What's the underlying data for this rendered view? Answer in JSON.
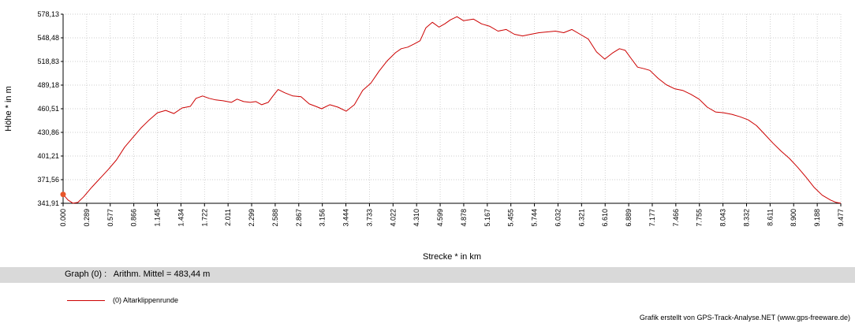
{
  "chart_data": {
    "type": "line",
    "xlabel": "Strecke *  in  km",
    "ylabel": "Höhe *  in  m",
    "xlim": [
      0,
      9.477
    ],
    "ylim": [
      341.91,
      578.13
    ],
    "x_ticks": [
      "0.000",
      "0.289",
      "0.577",
      "0.866",
      "1.145",
      "1.434",
      "1.722",
      "2.011",
      "2.299",
      "2.588",
      "2.867",
      "3.156",
      "3.444",
      "3.733",
      "4.022",
      "4.310",
      "4.599",
      "4.878",
      "5.167",
      "5.455",
      "5.744",
      "6.032",
      "6.321",
      "6.610",
      "6.889",
      "7.177",
      "7.466",
      "7.755",
      "8.043",
      "8.332",
      "8.611",
      "8.900",
      "9.188",
      "9.477"
    ],
    "y_ticks": [
      "578,13",
      "548,48",
      "518,83",
      "489,18",
      "460,51",
      "430,86",
      "401,21",
      "371,56",
      "341,91"
    ],
    "grid": true,
    "series": [
      {
        "name": "(0) Altarklippenrunde",
        "color": "#cc0000",
        "x": [
          0.0,
          0.06,
          0.12,
          0.18,
          0.25,
          0.35,
          0.45,
          0.55,
          0.65,
          0.75,
          0.85,
          0.95,
          1.05,
          1.15,
          1.25,
          1.35,
          1.45,
          1.55,
          1.62,
          1.7,
          1.78,
          1.86,
          1.95,
          2.05,
          2.12,
          2.2,
          2.28,
          2.35,
          2.42,
          2.5,
          2.55,
          2.62,
          2.7,
          2.8,
          2.9,
          3.0,
          3.08,
          3.15,
          3.25,
          3.35,
          3.45,
          3.55,
          3.65,
          3.75,
          3.85,
          3.95,
          4.05,
          4.12,
          4.2,
          4.28,
          4.35,
          4.42,
          4.5,
          4.58,
          4.65,
          4.72,
          4.8,
          4.88,
          5.0,
          5.1,
          5.2,
          5.3,
          5.4,
          5.5,
          5.6,
          5.7,
          5.8,
          5.9,
          6.0,
          6.1,
          6.2,
          6.3,
          6.4,
          6.5,
          6.6,
          6.7,
          6.78,
          6.85,
          6.92,
          7.0,
          7.08,
          7.15,
          7.25,
          7.35,
          7.45,
          7.55,
          7.65,
          7.75,
          7.85,
          7.95,
          8.05,
          8.15,
          8.25,
          8.35,
          8.45,
          8.55,
          8.65,
          8.75,
          8.85,
          8.95,
          9.05,
          9.15,
          9.25,
          9.35,
          9.42,
          9.477
        ],
        "y": [
          353,
          346,
          342,
          343,
          350,
          362,
          373,
          384,
          396,
          412,
          424,
          436,
          446,
          455,
          458,
          454,
          461,
          463,
          473,
          476,
          473,
          471,
          470,
          468,
          472,
          469,
          468,
          469,
          465,
          468,
          475,
          484,
          480,
          476,
          475,
          466,
          463,
          460,
          465,
          462,
          457,
          465,
          483,
          492,
          507,
          520,
          530,
          535,
          537,
          541,
          545,
          561,
          568,
          562,
          566,
          571,
          575,
          570,
          572,
          566,
          563,
          557,
          559,
          553,
          551,
          553,
          555,
          556,
          557,
          555,
          559,
          553,
          547,
          531,
          522,
          530,
          535,
          533,
          523,
          512,
          510,
          508,
          498,
          490,
          485,
          483,
          478,
          472,
          462,
          456,
          455,
          453,
          450,
          446,
          439,
          428,
          417,
          407,
          398,
          387,
          375,
          362,
          352,
          346,
          343,
          342
        ]
      }
    ]
  },
  "stats": {
    "text": "Graph (0) :   Arithm. Mittel = 483,44 m"
  },
  "legend": {
    "label": "(0) Altarklippenrunde"
  },
  "credit": {
    "text": "Grafik erstellt von GPS-Track-Analyse.NET (www.gps-freeware.de)"
  },
  "colors": {
    "line": "#cc0000",
    "marker": "#e8552a",
    "grid": "#bfbfbf",
    "band": "#d9d9d9"
  }
}
